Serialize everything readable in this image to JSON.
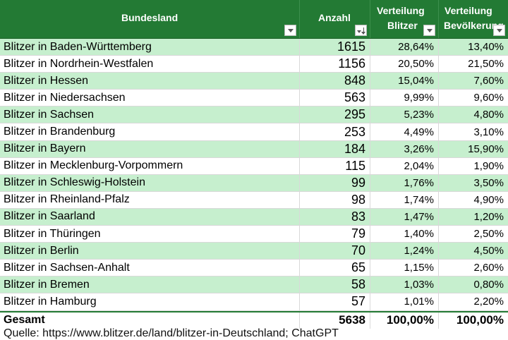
{
  "header": {
    "col1": "Bundesland",
    "col2": "Anzahl",
    "col3_line1": "Verteilung",
    "col3_line2": "Blitzer",
    "col4_line1": "Verteilung",
    "col4_line2": "Bevölkerung"
  },
  "rows": [
    {
      "name": "Blitzer in Baden-Württemberg",
      "count": "1615",
      "dist": "28,64%",
      "pop": "13,40%"
    },
    {
      "name": "Blitzer in Nordrhein-Westfalen",
      "count": "1156",
      "dist": "20,50%",
      "pop": "21,50%"
    },
    {
      "name": "Blitzer in Hessen",
      "count": "848",
      "dist": "15,04%",
      "pop": "7,60%"
    },
    {
      "name": "Blitzer in Niedersachsen",
      "count": "563",
      "dist": "9,99%",
      "pop": "9,60%"
    },
    {
      "name": "Blitzer in Sachsen",
      "count": "295",
      "dist": "5,23%",
      "pop": "4,80%"
    },
    {
      "name": "Blitzer in Brandenburg",
      "count": "253",
      "dist": "4,49%",
      "pop": "3,10%"
    },
    {
      "name": "Blitzer in Bayern",
      "count": "184",
      "dist": "3,26%",
      "pop": "15,90%"
    },
    {
      "name": "Blitzer in Mecklenburg-Vorpommern",
      "count": "115",
      "dist": "2,04%",
      "pop": "1,90%"
    },
    {
      "name": "Blitzer in Schleswig-Holstein",
      "count": "99",
      "dist": "1,76%",
      "pop": "3,50%"
    },
    {
      "name": "Blitzer in Rheinland-Pfalz",
      "count": "98",
      "dist": "1,74%",
      "pop": "4,90%"
    },
    {
      "name": "Blitzer in Saarland",
      "count": "83",
      "dist": "1,47%",
      "pop": "1,20%"
    },
    {
      "name": "Blitzer in Thüringen",
      "count": "79",
      "dist": "1,40%",
      "pop": "2,50%"
    },
    {
      "name": "Blitzer in Berlin",
      "count": "70",
      "dist": "1,24%",
      "pop": "4,50%"
    },
    {
      "name": "Blitzer in Sachsen-Anhalt",
      "count": "65",
      "dist": "1,15%",
      "pop": "2,60%"
    },
    {
      "name": "Blitzer in Bremen",
      "count": "58",
      "dist": "1,03%",
      "pop": "0,80%"
    },
    {
      "name": "Blitzer in Hamburg",
      "count": "57",
      "dist": "1,01%",
      "pop": "2,20%"
    }
  ],
  "total": {
    "label": "Gesamt",
    "count": "5638",
    "dist": "100,00%",
    "pop": "100,00%"
  },
  "source": "Quelle: https://www.blitzer.de/land/blitzer-in-Deutschland; ChatGPT",
  "colors": {
    "header_bg": "#237a34",
    "band_green": "#c6efce",
    "band_white": "#ffffff"
  },
  "icons": {
    "filter": "filter-dropdown-icon",
    "sort": "sort-descending-filter-icon"
  }
}
